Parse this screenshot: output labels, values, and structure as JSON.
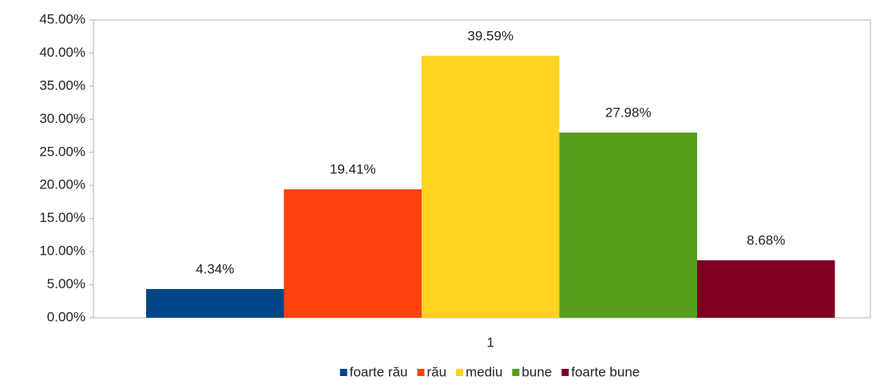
{
  "chart_data": {
    "type": "bar",
    "categories": [
      "1"
    ],
    "series": [
      {
        "name": "foarte rău",
        "color": "#004586",
        "values": [
          4.34
        ],
        "value_labels": [
          "4.34%"
        ]
      },
      {
        "name": "rău",
        "color": "#ff420e",
        "values": [
          19.41
        ],
        "value_labels": [
          "19.41%"
        ]
      },
      {
        "name": "mediu",
        "color": "#ffd320",
        "values": [
          39.59
        ],
        "value_labels": [
          "39.59%"
        ]
      },
      {
        "name": "bune",
        "color": "#579d1c",
        "values": [
          27.98
        ],
        "value_labels": [
          "27.98%"
        ]
      },
      {
        "name": "foarte bune",
        "color": "#7e0021",
        "values": [
          8.68
        ],
        "value_labels": [
          "8.68%"
        ]
      }
    ],
    "ylim": [
      0,
      45
    ],
    "yticks": [
      {
        "value": 0,
        "label": "0.00%"
      },
      {
        "value": 5,
        "label": "5.00%"
      },
      {
        "value": 10,
        "label": "10.00%"
      },
      {
        "value": 15,
        "label": "15.00%"
      },
      {
        "value": 20,
        "label": "20.00%"
      },
      {
        "value": 25,
        "label": "25.00%"
      },
      {
        "value": 30,
        "label": "30.00%"
      },
      {
        "value": 35,
        "label": "35.00%"
      },
      {
        "value": 40,
        "label": "40.00%"
      },
      {
        "value": 45,
        "label": "45.00%"
      }
    ],
    "legend": "bottom"
  }
}
